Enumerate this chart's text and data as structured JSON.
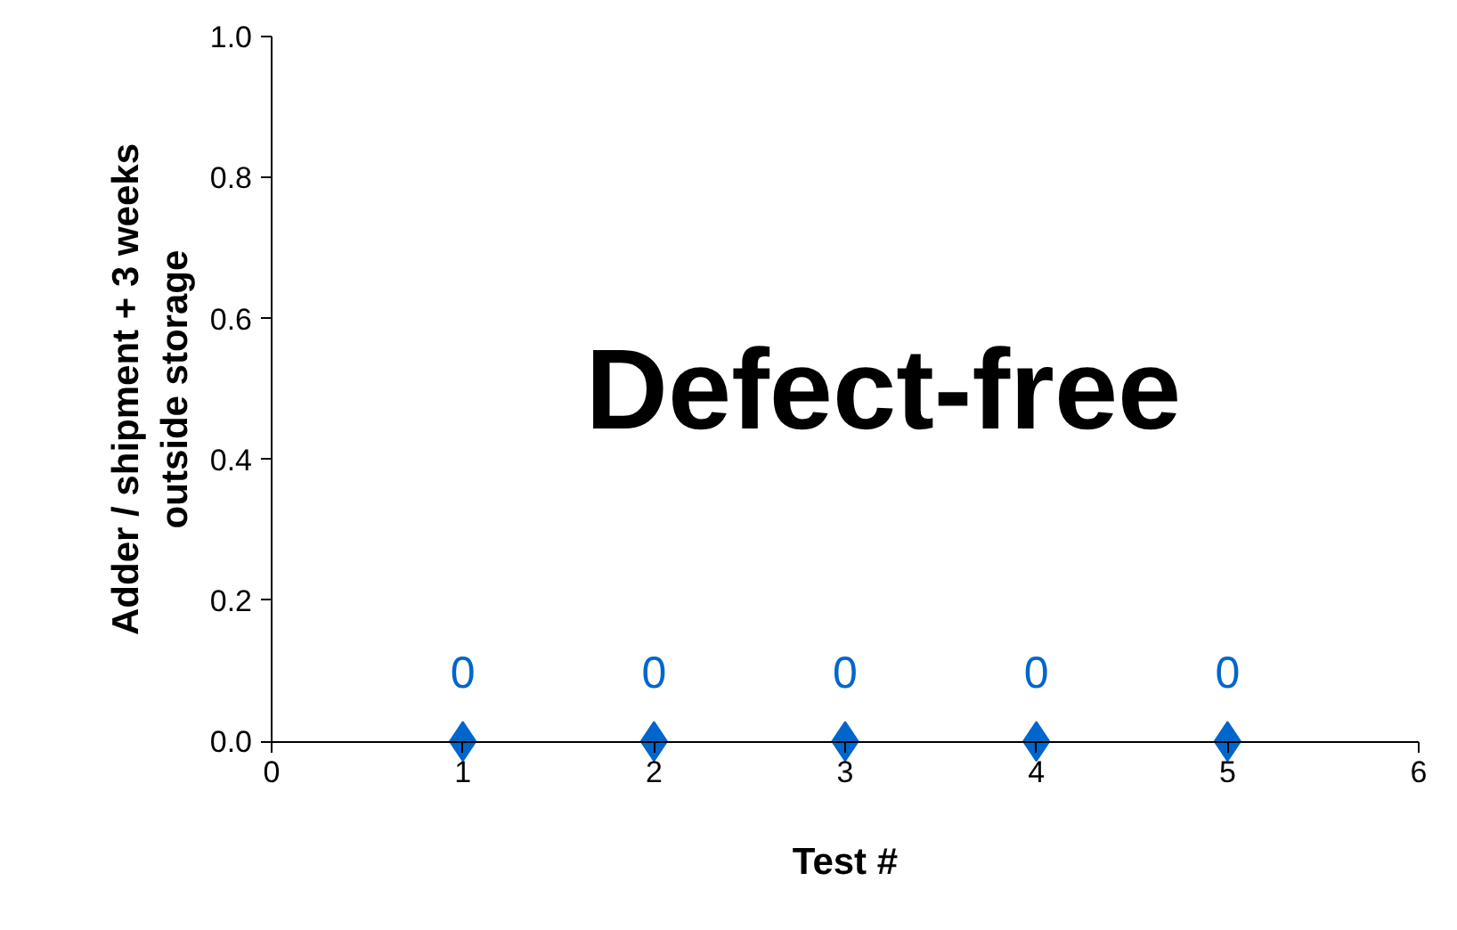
{
  "chart_data": {
    "type": "scatter",
    "xlabel": "Test #",
    "ylabel": "Adder / shipment + 3 weeks outside storage",
    "x": [
      1,
      2,
      3,
      4,
      5
    ],
    "series": [
      {
        "color": "#0066cc",
        "values": [
          0,
          0,
          0,
          0,
          0
        ]
      }
    ],
    "data_labels": true,
    "marker": "diamond",
    "grid": false,
    "xlim": [
      0,
      6
    ],
    "xticks": [
      0,
      1,
      2,
      3,
      4,
      5,
      6
    ],
    "ylim": [
      0,
      1
    ],
    "yticks": [
      {
        "value": 0,
        "label": "0.0"
      },
      {
        "value": 0.2,
        "label": "0.2"
      },
      {
        "value": 0.4,
        "label": "0.4"
      },
      {
        "value": 0.6,
        "label": "0.6"
      },
      {
        "value": 0.8,
        "label": "0.8"
      },
      {
        "value": 1,
        "label": "1.0"
      }
    ],
    "annotations": [
      "Defect-free"
    ]
  }
}
